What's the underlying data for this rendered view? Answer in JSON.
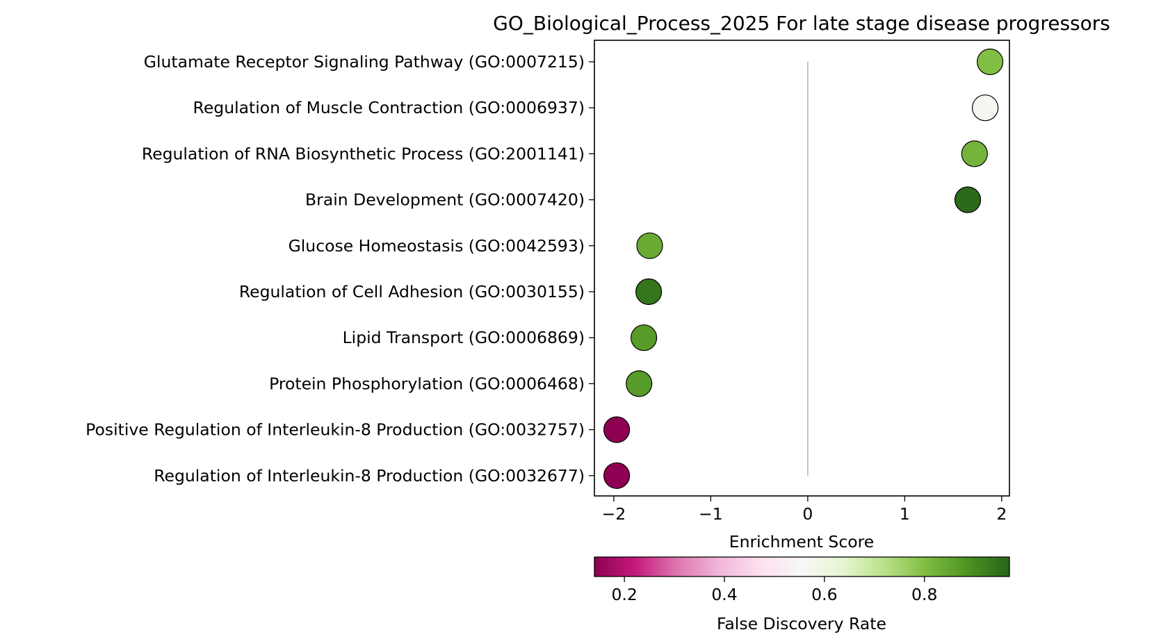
{
  "chart_data": {
    "type": "scatter",
    "title": "GO_Biological_Process_2025 For late stage disease progressors",
    "xlabel": "Enrichment Score",
    "ylabel": "",
    "xlim": [
      -2.2,
      2.08
    ],
    "xticks": [
      -2,
      -1,
      0,
      1,
      2
    ],
    "xtick_labels": [
      "−2",
      "−1",
      "0",
      "1",
      "2"
    ],
    "reference_line_x": 0,
    "grid": false,
    "points": [
      {
        "term": "Glutamate Receptor Signaling Pathway (GO:0007215)",
        "enrichment_score": 1.88,
        "fdr": 0.8
      },
      {
        "term": "Regulation of Muscle Contraction (GO:0006937)",
        "enrichment_score": 1.83,
        "fdr": 0.57
      },
      {
        "term": "Regulation of RNA Biosynthetic Process (GO:2001141)",
        "enrichment_score": 1.72,
        "fdr": 0.82
      },
      {
        "term": "Brain Development (GO:0007420)",
        "enrichment_score": 1.65,
        "fdr": 0.96
      },
      {
        "term": "Glucose Homeostasis (GO:0042593)",
        "enrichment_score": -1.63,
        "fdr": 0.84
      },
      {
        "term": "Regulation of Cell Adhesion (GO:0030155)",
        "enrichment_score": -1.64,
        "fdr": 0.94
      },
      {
        "term": "Lipid Transport (GO:0006869)",
        "enrichment_score": -1.69,
        "fdr": 0.87
      },
      {
        "term": "Protein Phosphorylation (GO:0006468)",
        "enrichment_score": -1.74,
        "fdr": 0.87
      },
      {
        "term": "Positive Regulation of Interleukin-8 Production (GO:0032757)",
        "enrichment_score": -1.97,
        "fdr": 0.14
      },
      {
        "term": "Regulation of Interleukin-8 Production (GO:0032677)",
        "enrichment_score": -1.97,
        "fdr": 0.14
      }
    ],
    "colorbar": {
      "label": "False Discovery Rate",
      "colormap": "PiYG",
      "range": [
        0.14,
        0.97
      ],
      "ticks": [
        0.2,
        0.4,
        0.6,
        0.8
      ],
      "tick_labels": [
        "0.2",
        "0.4",
        "0.6",
        "0.8"
      ],
      "placement": "bottom"
    }
  }
}
